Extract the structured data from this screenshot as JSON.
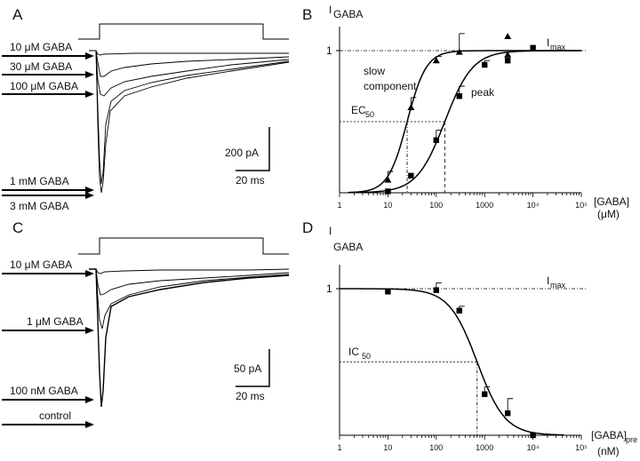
{
  "panels": {
    "A": {
      "letter": "A",
      "labels": [
        "10 μM GABA",
        "30 μM GABA",
        "100 μM GABA",
        "1 mM GABA",
        "3 mM GABA"
      ],
      "scalebar": {
        "current": "200 pA",
        "time": "20 ms"
      }
    },
    "C": {
      "letter": "C",
      "labels": [
        "10 μM GABA",
        "1 μM GABA",
        "100 nM GABA",
        "control"
      ],
      "scalebar": {
        "current": "50 pA",
        "time": "20 ms"
      }
    }
  },
  "chart_data": [
    {
      "panel": "B",
      "type": "scatter",
      "ylabel": "I",
      "ylabel_sub": "GABA",
      "xlabel": "[GABA]",
      "xunit": "(μM)",
      "xscale": "log",
      "xlim": [
        1,
        100000
      ],
      "xticks": [
        "1",
        "10",
        "100",
        "1000",
        "10⁴",
        "10⁵"
      ],
      "yticks": [
        "1"
      ],
      "ylim": [
        0,
        1.1
      ],
      "hline": {
        "y": 1,
        "label": "I",
        "label_sub": "max"
      },
      "ec50_label": "EC",
      "ec50_sub": "50",
      "ec50_level": 0.5,
      "ec50_values": [
        25,
        150
      ],
      "series": [
        {
          "name": "slow component",
          "marker": "triangle",
          "fit": {
            "ec50": 25,
            "hill": 2.2
          },
          "points": [
            {
              "x": 10,
              "y": 0.09,
              "err": 0.06
            },
            {
              "x": 30,
              "y": 0.6,
              "err": 0.07
            },
            {
              "x": 100,
              "y": 0.93,
              "err": 0.03
            },
            {
              "x": 300,
              "y": 0.99,
              "err": 0.13
            },
            {
              "x": 3000,
              "y": 0.97,
              "err": 0
            },
            {
              "x": 3000,
              "y": 1.1,
              "err": 0
            }
          ]
        },
        {
          "name": "peak",
          "marker": "square",
          "fit": {
            "ec50": 150,
            "hill": 1.5
          },
          "points": [
            {
              "x": 10,
              "y": 0.01,
              "err": 0
            },
            {
              "x": 30,
              "y": 0.12,
              "err": 0
            },
            {
              "x": 100,
              "y": 0.37,
              "err": 0.07
            },
            {
              "x": 300,
              "y": 0.68,
              "err": 0.07
            },
            {
              "x": 1000,
              "y": 0.9,
              "err": 0.03
            },
            {
              "x": 3000,
              "y": 0.93,
              "err": 0
            },
            {
              "x": 10000,
              "y": 1.02,
              "err": 0
            }
          ]
        }
      ]
    },
    {
      "panel": "D",
      "type": "scatter",
      "ylabel": "I",
      "ylabel_sub": "GABA",
      "xlabel": "[GABA]",
      "xlabel_sub": "pre",
      "xunit": "(nM)",
      "xscale": "log",
      "xlim": [
        1,
        100000
      ],
      "xticks": [
        "1",
        "10",
        "100",
        "1000",
        "10⁴",
        "10⁵"
      ],
      "yticks": [
        "1"
      ],
      "ylim": [
        0,
        1.05
      ],
      "hline": {
        "y": 1,
        "label": "I",
        "label_sub": "max"
      },
      "ic50_label": "IC",
      "ic50_sub": "50",
      "ic50_level": 0.5,
      "ic50_value": 700,
      "series": [
        {
          "marker": "square",
          "fit": {
            "ic50": 700,
            "hill": 1.5
          },
          "points": [
            {
              "x": 10,
              "y": 0.98,
              "err": 0.02
            },
            {
              "x": 100,
              "y": 0.99,
              "err": 0.05
            },
            {
              "x": 300,
              "y": 0.85,
              "err": 0.03
            },
            {
              "x": 1000,
              "y": 0.28,
              "err": 0.05
            },
            {
              "x": 3000,
              "y": 0.15,
              "err": 0.1
            },
            {
              "x": 10000,
              "y": 0.0,
              "err": 0
            }
          ]
        }
      ]
    }
  ]
}
